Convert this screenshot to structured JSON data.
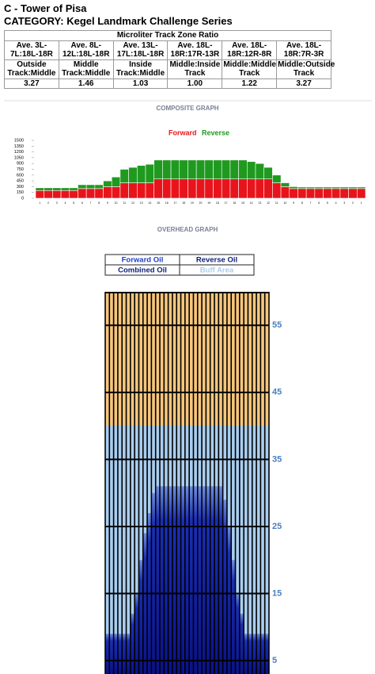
{
  "header": {
    "title": "C - Tower of Pisa",
    "category": "CATEGORY: Kegel Landmark Challenge Series"
  },
  "table": {
    "title": "Microliter Track Zone Ratio",
    "rows": [
      [
        "Ave. 3L-7L:18L-18R",
        "Ave. 8L-12L:18L-18R",
        "Ave. 13L-17L:18L-18R",
        "Ave. 18L-18R:17R-13R",
        "Ave. 18L-18R:12R-8R",
        "Ave. 18L-18R:7R-3R"
      ],
      [
        "Outside Track:Middle",
        "Middle Track:Middle",
        "Inside Track:Middle",
        "Middle:Inside Track",
        "Middle:Middle Track",
        "Middle:Outside Track"
      ],
      [
        "3.27",
        "1.46",
        "1.03",
        "1.00",
        "1.22",
        "3.27"
      ]
    ]
  },
  "composite_graph": {
    "type": "bar",
    "stacked": true,
    "title": "COMPOSITE GRAPH",
    "categories": [
      1,
      2,
      3,
      4,
      5,
      6,
      7,
      8,
      9,
      10,
      11,
      12,
      13,
      14,
      15,
      16,
      17,
      18,
      19,
      20,
      19,
      18,
      17,
      16,
      15,
      14,
      13,
      12,
      11,
      10,
      9,
      8,
      7,
      6,
      5,
      4,
      3,
      2,
      1
    ],
    "series": [
      {
        "name": "Forward",
        "color": "#e8141c",
        "values": [
          200,
          200,
          200,
          200,
          200,
          250,
          250,
          250,
          300,
          300,
          400,
          400,
          400,
          400,
          500,
          500,
          500,
          500,
          500,
          500,
          500,
          500,
          500,
          500,
          500,
          500,
          500,
          500,
          400,
          300,
          250,
          250,
          250,
          250,
          250,
          250,
          250,
          250,
          250
        ]
      },
      {
        "name": "Reverse",
        "color": "#1f9a1f",
        "values": [
          70,
          70,
          70,
          70,
          70,
          100,
          100,
          100,
          150,
          250,
          350,
          400,
          450,
          480,
          490,
          490,
          490,
          490,
          490,
          490,
          490,
          490,
          490,
          490,
          490,
          450,
          400,
          300,
          200,
          100,
          50,
          40,
          40,
          40,
          40,
          40,
          40,
          40,
          40
        ]
      }
    ],
    "ylim": [
      0,
      1500
    ],
    "yticks": [
      0,
      150,
      300,
      450,
      600,
      750,
      900,
      1050,
      1200,
      1350,
      1500
    ]
  },
  "overhead_graph": {
    "title": "OVERHEAD GRAPH",
    "legend": [
      {
        "name": "Forward Oil",
        "color": "#1d3fc4"
      },
      {
        "name": "Reverse Oil",
        "color": "#0b1f7a"
      },
      {
        "name": "Combined Oil",
        "color": "#0b1f7a"
      },
      {
        "name": "Buff Area",
        "color": "#a9cdee"
      }
    ],
    "values": [
      9,
      9,
      9,
      9,
      9,
      9,
      12,
      15,
      20,
      24,
      27,
      30,
      31,
      31,
      31,
      31,
      31,
      31,
      31,
      31,
      31,
      31,
      31,
      31,
      31,
      31,
      31,
      31,
      29,
      25,
      20,
      15,
      12,
      9,
      9,
      9,
      9,
      9,
      9
    ],
    "buff_length": 40,
    "ylim": [
      3,
      60
    ],
    "yticks": [
      5,
      15,
      25,
      35,
      45,
      55
    ]
  }
}
